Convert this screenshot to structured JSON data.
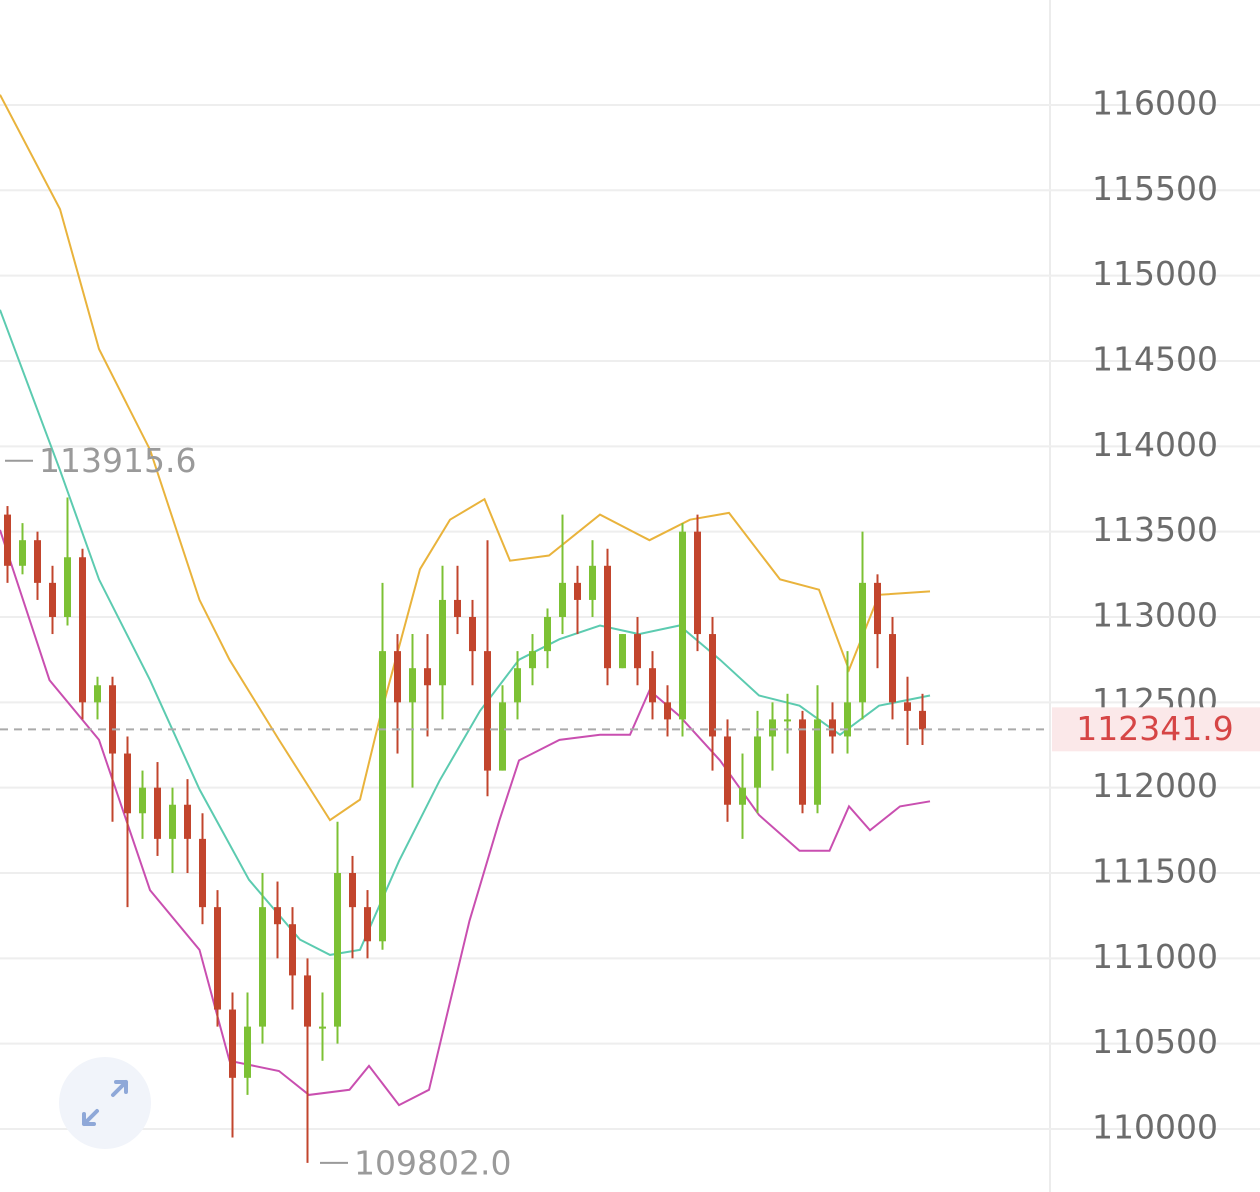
{
  "chart_data": {
    "type": "candlestick",
    "open": [
      113600,
      113300,
      113450,
      113200,
      113000,
      113350,
      112500,
      112600,
      112200,
      111850,
      112000,
      111700,
      111900,
      111700,
      111300,
      110700,
      110300,
      110600,
      111300,
      111200,
      110900,
      110600,
      110600,
      111500,
      111300,
      111100,
      112800,
      112500,
      112700,
      112600,
      113100,
      113000,
      112800,
      112100,
      112500,
      112700,
      112800,
      113000,
      113200,
      113100,
      113300,
      112700,
      112900,
      112700,
      112500,
      112400,
      113500,
      112900,
      112300,
      111900,
      112000,
      112300,
      112400,
      112400,
      111900,
      112400,
      112300,
      112500,
      113200,
      112900,
      112500,
      112450
    ],
    "high": [
      113650,
      113550,
      113500,
      113300,
      113700,
      113400,
      112650,
      112650,
      112300,
      112100,
      112150,
      112000,
      112050,
      111850,
      111400,
      110800,
      110800,
      111500,
      111450,
      111300,
      111000,
      110800,
      111800,
      111600,
      111400,
      113200,
      112900,
      112900,
      112900,
      113300,
      113300,
      113100,
      113450,
      112600,
      112800,
      112900,
      113050,
      113600,
      113300,
      113450,
      113400,
      112900,
      113000,
      112800,
      112600,
      113550,
      113600,
      113000,
      112400,
      112200,
      112450,
      112500,
      112550,
      112450,
      112600,
      112500,
      112800,
      113500,
      113250,
      113000,
      112650,
      112550
    ],
    "low": [
      113200,
      113250,
      113100,
      112900,
      112950,
      112400,
      112400,
      111800,
      111300,
      111700,
      111600,
      111500,
      111500,
      111200,
      110600,
      109950,
      110200,
      110500,
      111000,
      110700,
      109802,
      110400,
      110500,
      111000,
      111000,
      111050,
      112200,
      112000,
      112300,
      112400,
      112900,
      112600,
      111950,
      112100,
      112400,
      112600,
      112700,
      112900,
      112900,
      113000,
      112600,
      112700,
      112600,
      112400,
      112300,
      112300,
      112800,
      112100,
      111800,
      111700,
      111850,
      112100,
      112200,
      111850,
      111850,
      112200,
      112200,
      112400,
      112700,
      112400,
      112250,
      112250
    ],
    "close": [
      113300,
      113450,
      113200,
      113000,
      113350,
      112500,
      112600,
      112200,
      111850,
      112000,
      111700,
      111900,
      111700,
      111300,
      110700,
      110300,
      110600,
      111300,
      111200,
      110900,
      110600,
      110600,
      111500,
      111300,
      111100,
      112800,
      112500,
      112700,
      112600,
      113100,
      113000,
      112800,
      112100,
      112500,
      112700,
      112800,
      113000,
      113200,
      113100,
      113300,
      112700,
      112900,
      112700,
      112500,
      112400,
      113500,
      112900,
      112300,
      111900,
      112000,
      112300,
      112400,
      112400,
      111900,
      112400,
      112300,
      112500,
      113200,
      112900,
      112500,
      112450,
      112341.9
    ],
    "up_color": "#7cc134",
    "down_color": "#c2452d",
    "series": [
      {
        "color": "#e9b33c",
        "x": [
          -0.5,
          3.5,
          6.1,
          9.5,
          12.8,
          14.8,
          18.1,
          21.5,
          23.5,
          24.8,
          27.5,
          29.5,
          31.8,
          33.5,
          36.1,
          39.5,
          42.8,
          45.5,
          48.1,
          51.5,
          54.1,
          56.1,
          58.1,
          61.5
        ],
        "values": [
          116060,
          115390,
          114570,
          113980,
          113100,
          112750,
          112280,
          111810,
          111930,
          112400,
          113280,
          113570,
          113690,
          113330,
          113360,
          113600,
          113450,
          113570,
          113610,
          113220,
          113160,
          112690,
          113130,
          113150
        ]
      },
      {
        "color": "#5ccbb0",
        "x": [
          -0.5,
          3.5,
          6.1,
          9.5,
          12.8,
          16.1,
          19.5,
          21.5,
          23.5,
          26.1,
          28.8,
          31.5,
          34.1,
          36.8,
          39.5,
          42.1,
          44.8,
          47.5,
          50.1,
          52.8,
          55.5,
          58.1,
          61.5
        ],
        "values": [
          114800,
          113860,
          113220,
          112630,
          111990,
          111460,
          111110,
          111020,
          111050,
          111570,
          112040,
          112450,
          112750,
          112870,
          112950,
          112900,
          112950,
          112750,
          112540,
          112480,
          112310,
          112480,
          112540
        ]
      },
      {
        "color": "#c94fb0",
        "x": [
          -0.5,
          2.8,
          6.1,
          9.5,
          12.8,
          14.8,
          18.1,
          20.1,
          22.8,
          24.1,
          26.1,
          28.1,
          30.8,
          32.8,
          34.1,
          36.8,
          39.5,
          41.5,
          42.8,
          44.8,
          47.5,
          50.1,
          52.8,
          54.8,
          56.1,
          57.5,
          59.5,
          61.5
        ],
        "values": [
          113510,
          112630,
          112280,
          111400,
          111050,
          110400,
          110340,
          110200,
          110230,
          110370,
          110140,
          110230,
          111220,
          111810,
          112160,
          112280,
          112310,
          112310,
          112570,
          112420,
          112160,
          111840,
          111630,
          111630,
          111890,
          111750,
          111890,
          111920
        ]
      }
    ],
    "xlim": [
      -0.5,
      69.5
    ],
    "ylim": [
      109631,
      116615
    ],
    "yticks": [
      110000,
      110500,
      111000,
      111500,
      112000,
      112500,
      113000,
      113500,
      114000,
      114500,
      115000,
      115500,
      116000
    ],
    "grid": true,
    "annotations": [
      {
        "value": 113915.6,
        "label": "113915.6"
      },
      {
        "value": 109802,
        "label": "109802.0"
      }
    ],
    "last_price_color": "#d64545"
  }
}
